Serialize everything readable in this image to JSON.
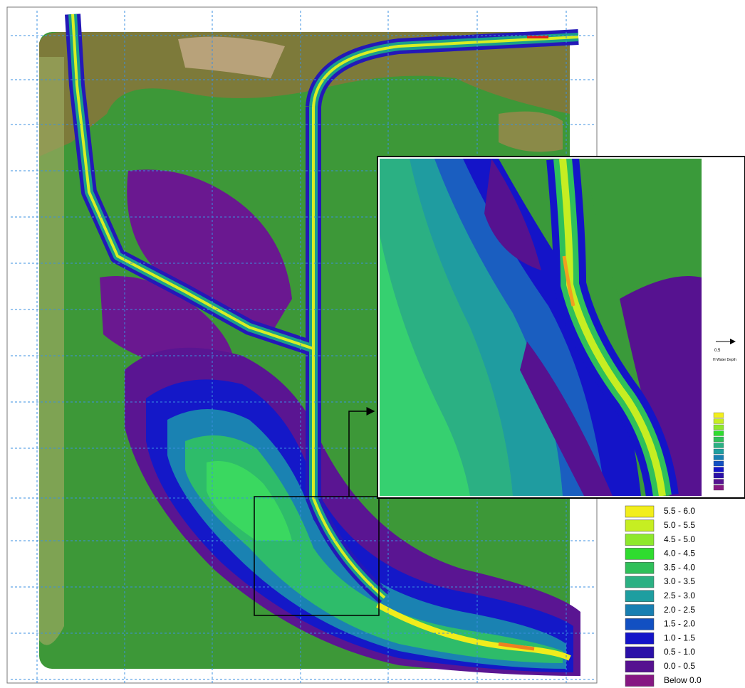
{
  "legend": {
    "items": [
      {
        "label": "5.5 - 6.0",
        "color": "#f2ee1c"
      },
      {
        "label": "5.0 - 5.5",
        "color": "#c6ee22"
      },
      {
        "label": "4.5 - 5.0",
        "color": "#8ee82c"
      },
      {
        "label": "4.0 - 4.5",
        "color": "#2fdc2f"
      },
      {
        "label": "3.5 - 4.0",
        "color": "#2fc05a"
      },
      {
        "label": "3.0 - 3.5",
        "color": "#2bb083"
      },
      {
        "label": "2.5 - 3.0",
        "color": "#1e9ea0"
      },
      {
        "label": "2.0 - 2.5",
        "color": "#187fb2"
      },
      {
        "label": "1.5 - 2.0",
        "color": "#1250c2"
      },
      {
        "label": "1.0 - 1.5",
        "color": "#1414c8"
      },
      {
        "label": "0.5 - 1.0",
        "color": "#2a10a8"
      },
      {
        "label": "0.0 - 0.5",
        "color": "#561290"
      },
      {
        "label": "Below 0.0",
        "color": "#861882"
      }
    ]
  },
  "inset_legend": {
    "arrow_label": "0.5",
    "title": "H Water Depth"
  }
}
